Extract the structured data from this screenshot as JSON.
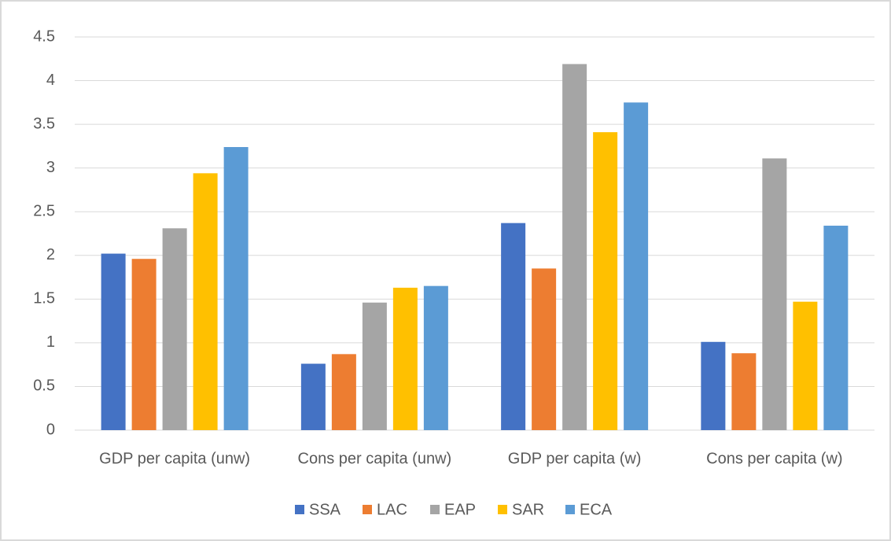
{
  "chart_data": {
    "type": "bar",
    "categories": [
      "GDP per capita (unw)",
      "Cons per capita (unw)",
      "GDP per capita (w)",
      "Cons per capita (w)"
    ],
    "series": [
      {
        "name": "SSA",
        "color": "#4472c4",
        "values": [
          2.02,
          0.76,
          2.37,
          1.01
        ]
      },
      {
        "name": "LAC",
        "color": "#ed7d31",
        "values": [
          1.96,
          0.87,
          1.85,
          0.88
        ]
      },
      {
        "name": "EAP",
        "color": "#a5a5a5",
        "values": [
          2.31,
          1.46,
          4.19,
          3.11
        ]
      },
      {
        "name": "SAR",
        "color": "#ffc000",
        "values": [
          2.94,
          1.63,
          3.41,
          1.47
        ]
      },
      {
        "name": "ECA",
        "color": "#5b9bd5",
        "values": [
          3.24,
          1.65,
          3.75,
          2.34
        ]
      }
    ],
    "ylim": [
      0,
      4.5
    ],
    "yticks": [
      0,
      0.5,
      1,
      1.5,
      2,
      2.5,
      3,
      3.5,
      4,
      4.5
    ],
    "grid": true,
    "legend": "bottom"
  }
}
